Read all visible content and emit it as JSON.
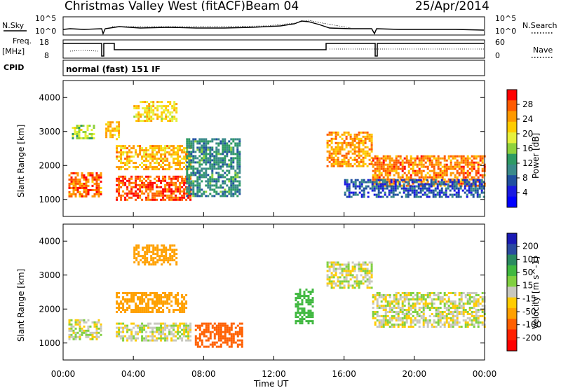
{
  "header": {
    "title": "Christmas Valley West (fitACF)",
    "beam": "Beam 04",
    "date": "25/Apr/2014"
  },
  "top_panels": {
    "nsky_label": "N.Sky",
    "nsky_ticks": [
      "10^5",
      "10^0"
    ],
    "nsearch_label": "N.Search",
    "nsearch_ticks": [
      "10^5",
      "10^0"
    ],
    "freq_label": "Freq.",
    "freq_unit": "[MHz]",
    "freq_ticks": [
      "18",
      "8"
    ],
    "nave_label": "Nave",
    "nave_ticks": [
      "60",
      "0"
    ],
    "cpid_label": "CPID",
    "cpid_value": "normal (fast) 151 IF"
  },
  "colorbars": {
    "power": {
      "label": "Power [dB]",
      "ticks": [
        "28",
        "24",
        "20",
        "16",
        "12",
        "8",
        "4"
      ],
      "colors": [
        "#ff0000",
        "#ff5a00",
        "#ff9900",
        "#ffcc00",
        "#e6f03c",
        "#8fd23c",
        "#2e9a64",
        "#3a8a8a",
        "#2050a0",
        "#1a1ae0",
        "#0000ff"
      ]
    },
    "velocity": {
      "label": "Velocity [m s^-1]",
      "ticks": [
        "200",
        "100",
        "50",
        "15",
        "-15",
        "-50",
        "-100",
        "-200"
      ],
      "colors": [
        "#1a1ab4",
        "#2a4aa0",
        "#2a8a60",
        "#40b840",
        "#80d040",
        "#c8c8be",
        "#ffcc00",
        "#ffa000",
        "#ff6000",
        "#ff2000",
        "#ff0000"
      ]
    }
  },
  "chart_data": [
    {
      "type": "heatmap",
      "name": "power",
      "ylabel": "Slant Range [km]",
      "yticks": [
        "4000",
        "3000",
        "2000",
        "1000"
      ],
      "ylim": [
        500,
        4500
      ],
      "xlim": [
        0,
        24
      ],
      "bands": [
        {
          "x": [
            0.3,
            2.2
          ],
          "y": [
            1100,
            1800
          ],
          "level": 26
        },
        {
          "x": [
            0.5,
            1.8
          ],
          "y": [
            2800,
            3200
          ],
          "level": 16
        },
        {
          "x": [
            2.4,
            3.2
          ],
          "y": [
            2800,
            3300
          ],
          "level": 22
        },
        {
          "x": [
            3.0,
            7.2
          ],
          "y": [
            1000,
            1700
          ],
          "level": 27
        },
        {
          "x": [
            3.0,
            7.2
          ],
          "y": [
            1900,
            2600
          ],
          "level": 22
        },
        {
          "x": [
            4.0,
            6.5
          ],
          "y": [
            3300,
            3900
          ],
          "level": 20
        },
        {
          "x": [
            7.0,
            10.0
          ],
          "y": [
            1100,
            2800
          ],
          "level": 10
        },
        {
          "x": [
            15.0,
            17.6
          ],
          "y": [
            2000,
            3000
          ],
          "level": 24
        },
        {
          "x": [
            17.6,
            24.0
          ],
          "y": [
            1400,
            2300
          ],
          "level": 25
        },
        {
          "x": [
            16.0,
            24.0
          ],
          "y": [
            1100,
            1600
          ],
          "level": 6
        }
      ]
    },
    {
      "type": "heatmap",
      "name": "velocity",
      "ylabel": "Slant Range [km]",
      "yticks": [
        "4000",
        "3000",
        "2000",
        "1000"
      ],
      "ylim": [
        500,
        4500
      ],
      "xlim": [
        0,
        24
      ],
      "xlabel": "Time UT",
      "xticks": [
        "00:00",
        "04:00",
        "08:00",
        "12:00",
        "16:00",
        "20:00",
        "00:00"
      ],
      "bands": [
        {
          "x": [
            0.3,
            2.2
          ],
          "y": [
            1100,
            1700
          ],
          "level": 0
        },
        {
          "x": [
            3.0,
            7.2
          ],
          "y": [
            1100,
            1600
          ],
          "level": 0
        },
        {
          "x": [
            3.0,
            7.0
          ],
          "y": [
            1900,
            2500
          ],
          "level": -40
        },
        {
          "x": [
            4.0,
            6.5
          ],
          "y": [
            3300,
            3900
          ],
          "level": -40
        },
        {
          "x": [
            7.5,
            10.2
          ],
          "y": [
            900,
            1600
          ],
          "level": -80
        },
        {
          "x": [
            13.2,
            14.2
          ],
          "y": [
            1600,
            2600
          ],
          "level": 40
        },
        {
          "x": [
            15.0,
            17.6
          ],
          "y": [
            2600,
            3400
          ],
          "level": 0
        },
        {
          "x": [
            17.6,
            24.0
          ],
          "y": [
            1500,
            2500
          ],
          "level": 0
        }
      ]
    }
  ]
}
